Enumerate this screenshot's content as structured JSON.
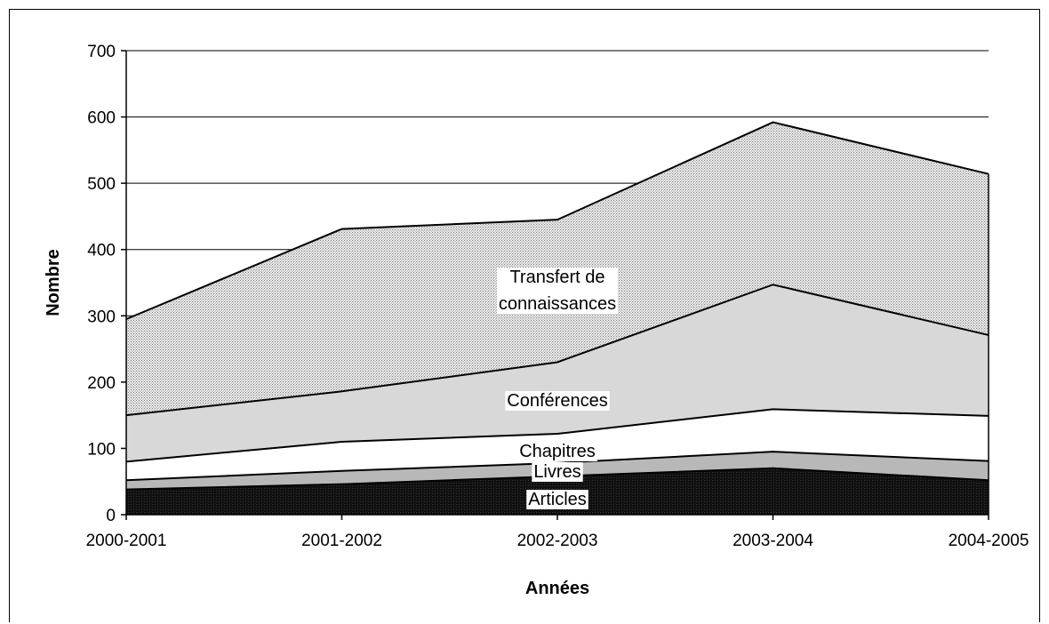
{
  "chart_data": {
    "type": "area",
    "stacked": true,
    "categories": [
      "2000-2001",
      "2001-2002",
      "2002-2003",
      "2003-2004",
      "2004-2005"
    ],
    "series": [
      {
        "name": "Articles",
        "values": [
          38,
          46,
          58,
          70,
          52
        ],
        "color": "#0a0a0a",
        "pattern": "dense-black"
      },
      {
        "name": "Livres",
        "values": [
          14,
          20,
          20,
          25,
          29
        ],
        "color": "#b8b8b8",
        "pattern": "solid"
      },
      {
        "name": "Chapitres",
        "values": [
          28,
          44,
          44,
          64,
          68
        ],
        "color": "#ffffff",
        "pattern": "solid"
      },
      {
        "name": "Conférences",
        "values": [
          70,
          76,
          108,
          188,
          122
        ],
        "color": "#d8d8d8",
        "pattern": "solid"
      },
      {
        "name": "Transfert de connaissances",
        "values": [
          145,
          245,
          215,
          245,
          243
        ],
        "color": "#c8c8c8",
        "pattern": "fine-dots"
      }
    ],
    "area_labels": [
      {
        "series": "Articles",
        "lines": [
          "Articles"
        ]
      },
      {
        "series": "Livres",
        "lines": [
          "Livres"
        ]
      },
      {
        "series": "Chapitres",
        "lines": [
          "Chapitres"
        ]
      },
      {
        "series": "Conférences",
        "lines": [
          "Conférences"
        ]
      },
      {
        "series": "Transfert de connaissances",
        "lines": [
          "Transfert de",
          "connaissances"
        ]
      }
    ],
    "xlabel": "Années",
    "ylabel": "Nombre",
    "ylim": [
      0,
      700
    ],
    "yticks": [
      "0",
      "100",
      "200",
      "300",
      "400",
      "500",
      "600",
      "700"
    ],
    "grid": true
  }
}
